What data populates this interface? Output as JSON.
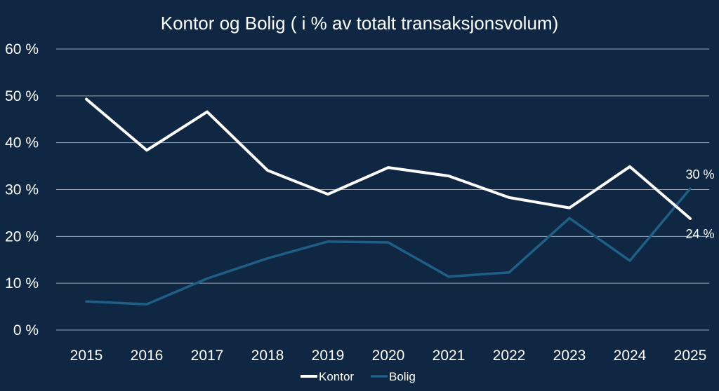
{
  "chart_data": {
    "type": "line",
    "title": "Kontor og Bolig ( i % av totalt transaksjonsvolum)",
    "xlabel": "",
    "ylabel": "",
    "categories": [
      "2015",
      "2016",
      "2017",
      "2018",
      "2019",
      "2020",
      "2021",
      "2022",
      "2023",
      "2024",
      "2025"
    ],
    "ylim": [
      0,
      60
    ],
    "yticks": [
      0,
      10,
      20,
      30,
      40,
      50,
      60
    ],
    "ytick_labels": [
      "0 %",
      "10 %",
      "20 %",
      "30 %",
      "40 %",
      "50 %",
      "60 %"
    ],
    "grid": true,
    "legend_position": "bottom",
    "series": [
      {
        "name": "Kontor",
        "color": "#ffffff",
        "values": [
          49.3,
          38.4,
          46.6,
          34.1,
          29.0,
          34.7,
          32.9,
          28.3,
          26.1,
          34.9,
          23.8
        ]
      },
      {
        "name": "Bolig",
        "color": "#1f5f86",
        "values": [
          6.1,
          5.5,
          11.0,
          15.3,
          18.9,
          18.7,
          11.4,
          12.3,
          23.9,
          14.8,
          30.2
        ]
      }
    ],
    "annotations": [
      {
        "series": "Bolig",
        "category": "2025",
        "text": "30 %"
      },
      {
        "series": "Kontor",
        "category": "2025",
        "text": "24 %"
      }
    ]
  }
}
